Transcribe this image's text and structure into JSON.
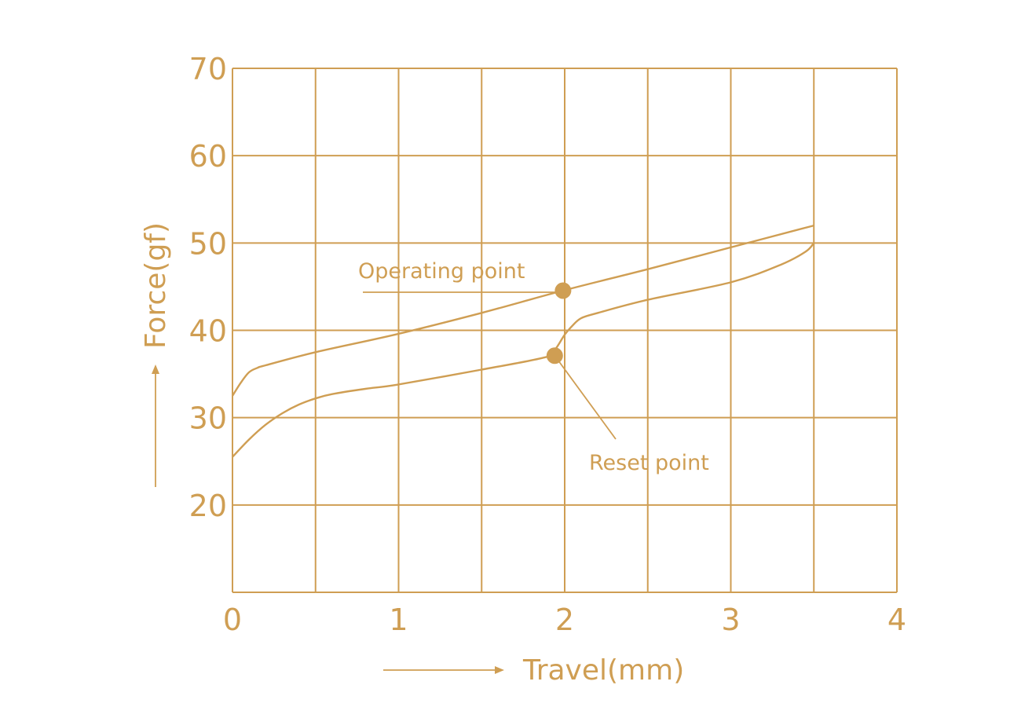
{
  "colors": {
    "accent": "#CF9E53",
    "background": "#ffffff"
  },
  "chart_data": {
    "type": "line",
    "title": "",
    "xlabel": "Travel(mm)",
    "ylabel": "Force(gf)",
    "xlim": [
      0,
      4
    ],
    "ylim": [
      10,
      70
    ],
    "x_ticks": [
      0,
      1,
      2,
      3,
      4
    ],
    "y_ticks": [
      20,
      30,
      40,
      50,
      60,
      70
    ],
    "grid": true,
    "grid_step": {
      "x": 0.5,
      "y": 10
    },
    "series": [
      {
        "x": [
          0,
          0.05,
          0.1,
          0.15,
          0.2,
          0.5,
          1.0,
          1.5,
          2.0,
          2.5,
          3.0,
          3.5
        ],
        "y": [
          32.5,
          34,
          35.2,
          35.7,
          36,
          37.5,
          39.6,
          42,
          44.6,
          47,
          49.5,
          52
        ]
      },
      {
        "x": [
          0,
          0.1,
          0.2,
          0.3,
          0.4,
          0.5,
          0.6,
          0.8,
          1.0,
          1.5,
          1.9,
          1.95,
          2.0,
          2.05,
          2.1,
          2.2,
          2.5,
          3.0,
          3.3,
          3.45,
          3.5
        ],
        "y": [
          25.5,
          27.5,
          29.2,
          30.5,
          31.5,
          32.2,
          32.7,
          33.3,
          33.8,
          35.5,
          37,
          38,
          39.5,
          40.6,
          41.4,
          42,
          43.5,
          45.5,
          47.5,
          49,
          50
        ]
      }
    ],
    "annotations": [
      {
        "label": "Operating point",
        "x": 1.99,
        "y": 44.6
      },
      {
        "label": "Reset point",
        "x": 1.94,
        "y": 37.1
      }
    ]
  }
}
